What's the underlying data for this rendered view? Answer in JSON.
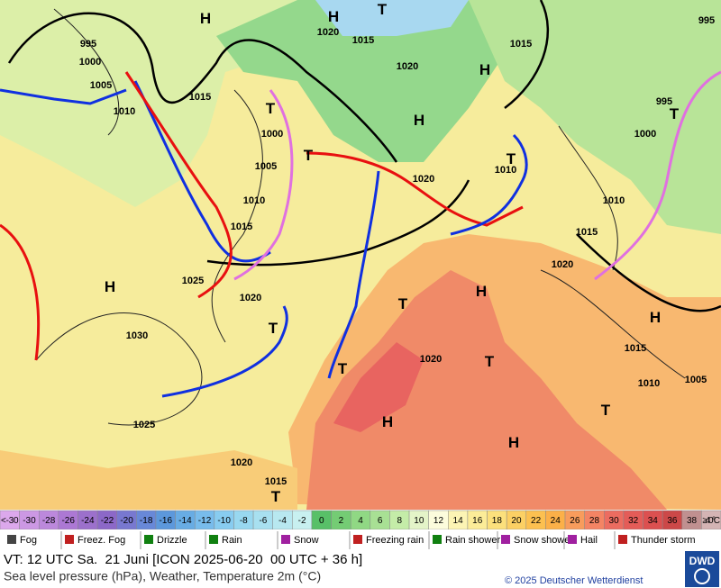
{
  "map": {
    "pressure_labels": [
      "995",
      "1000",
      "1005",
      "1010",
      "1015",
      "1020",
      "1015",
      "1020",
      "1015",
      "995",
      "1000",
      "1005",
      "1010",
      "1015",
      "1025",
      "1020",
      "1030",
      "1025",
      "1020",
      "1015",
      "1020",
      "1010",
      "1000",
      "995",
      "1010",
      "1015",
      "1020",
      "1015",
      "1010",
      "1005",
      "1020"
    ],
    "centers": [
      "H",
      "H",
      "T",
      "H",
      "H",
      "T",
      "T",
      "H",
      "T",
      "T",
      "H",
      "T",
      "T",
      "H",
      "H",
      "H",
      "T",
      "T",
      "T",
      "T"
    ]
  },
  "scale": [
    {
      "label": "<-30",
      "color": "#dca8ec"
    },
    {
      "label": "-30",
      "color": "#cc98e4"
    },
    {
      "label": "-28",
      "color": "#bc88dc"
    },
    {
      "label": "-26",
      "color": "#ac78d4"
    },
    {
      "label": "-24",
      "color": "#9c70cc"
    },
    {
      "label": "-22",
      "color": "#8c68c8"
    },
    {
      "label": "-20",
      "color": "#7878d0"
    },
    {
      "label": "-18",
      "color": "#6888d8"
    },
    {
      "label": "-16",
      "color": "#5c98dc"
    },
    {
      "label": "-14",
      "color": "#68acE4"
    },
    {
      "label": "-12",
      "color": "#78bcec"
    },
    {
      "label": "-10",
      "color": "#88ccf0"
    },
    {
      "label": "-8",
      "color": "#98d8f0"
    },
    {
      "label": "-6",
      "color": "#a8e0f0"
    },
    {
      "label": "-4",
      "color": "#b8e8f0"
    },
    {
      "label": "-2",
      "color": "#c8f0f0"
    },
    {
      "label": "0",
      "color": "#58c068"
    },
    {
      "label": "2",
      "color": "#74cc74"
    },
    {
      "label": "4",
      "color": "#90d884"
    },
    {
      "label": "6",
      "color": "#a8e094"
    },
    {
      "label": "8",
      "color": "#c4eca8"
    },
    {
      "label": "10",
      "color": "#e4f4c8"
    },
    {
      "label": "12",
      "color": "#fcfcdc"
    },
    {
      "label": "14",
      "color": "#fcf4b4"
    },
    {
      "label": "16",
      "color": "#fcec98"
    },
    {
      "label": "18",
      "color": "#fce07c"
    },
    {
      "label": "20",
      "color": "#fcd064"
    },
    {
      "label": "22",
      "color": "#fcc050"
    },
    {
      "label": "24",
      "color": "#fcb048"
    },
    {
      "label": "26",
      "color": "#f89c5c"
    },
    {
      "label": "28",
      "color": "#f48464"
    },
    {
      "label": "30",
      "color": "#ec6c60"
    },
    {
      "label": "32",
      "color": "#e45c58"
    },
    {
      "label": "34",
      "color": "#dc5050"
    },
    {
      "label": "36",
      "color": "#cc4848"
    },
    {
      "label": "38",
      "color": "#c09090"
    },
    {
      "label": "≥40 °C",
      "color": "#d4b4b4"
    }
  ],
  "legend": [
    "Fog",
    "Freez. Fog",
    "Drizzle",
    "Rain",
    "Snow",
    "Freezing rain",
    "Rain shower",
    "Snow shower",
    "Hail",
    "Thunder storm"
  ],
  "footer": {
    "valid_time": "VT: 12 UTC Sa.  21 Juni [ICON 2025-06-20  00 UTC + 36 h]",
    "description": "Sea level pressure (hPa), Weather, Temperature 2m (°C)",
    "copyright": "© 2025 Deutscher Wetterdienst",
    "logo": "DWD"
  }
}
